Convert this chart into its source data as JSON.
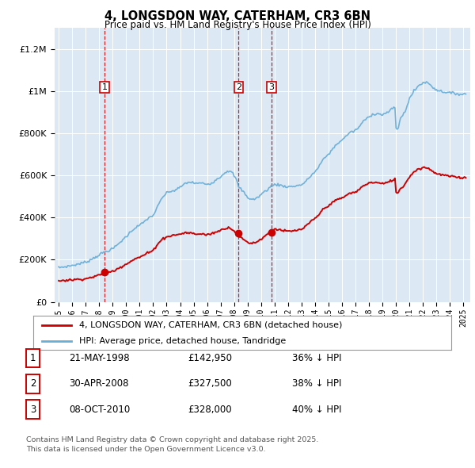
{
  "title": "4, LONGSDON WAY, CATERHAM, CR3 6BN",
  "subtitle": "Price paid vs. HM Land Registry's House Price Index (HPI)",
  "bg_color": "#dce9f5",
  "hpi_color": "#6baed6",
  "price_color": "#cc0000",
  "vline_color": "#cc0000",
  "transactions": [
    {
      "date_num": 1998.39,
      "price": 142950,
      "label": "1"
    },
    {
      "date_num": 2008.33,
      "price": 327500,
      "label": "2"
    },
    {
      "date_num": 2010.77,
      "price": 328000,
      "label": "3"
    }
  ],
  "legend_label_red": "4, LONGSDON WAY, CATERHAM, CR3 6BN (detached house)",
  "legend_label_blue": "HPI: Average price, detached house, Tandridge",
  "table_rows": [
    {
      "num": "1",
      "date": "21-MAY-1998",
      "price": "£142,950",
      "hpi": "36% ↓ HPI"
    },
    {
      "num": "2",
      "date": "30-APR-2008",
      "price": "£327,500",
      "hpi": "38% ↓ HPI"
    },
    {
      "num": "3",
      "date": "08-OCT-2010",
      "price": "£328,000",
      "hpi": "40% ↓ HPI"
    }
  ],
  "footnote": "Contains HM Land Registry data © Crown copyright and database right 2025.\nThis data is licensed under the Open Government Licence v3.0.",
  "ylim_max": 1300000,
  "xlim_start": 1994.7,
  "xlim_end": 2025.5,
  "hpi_data_x": [
    1995.0,
    1995.08,
    1995.17,
    1995.25,
    1995.33,
    1995.42,
    1995.5,
    1995.58,
    1995.67,
    1995.75,
    1995.83,
    1995.92,
    1996.0,
    1996.08,
    1996.17,
    1996.25,
    1996.33,
    1996.42,
    1996.5,
    1996.58,
    1996.67,
    1996.75,
    1996.83,
    1996.92,
    1997.0,
    1997.08,
    1997.17,
    1997.25,
    1997.33,
    1997.42,
    1997.5,
    1997.58,
    1997.67,
    1997.75,
    1997.83,
    1997.92,
    1998.0,
    1998.08,
    1998.17,
    1998.25,
    1998.33,
    1998.42,
    1998.5,
    1998.58,
    1998.67,
    1998.75,
    1998.83,
    1998.92,
    1999.0,
    1999.08,
    1999.17,
    1999.25,
    1999.33,
    1999.42,
    1999.5,
    1999.58,
    1999.67,
    1999.75,
    1999.83,
    1999.92,
    2000.0,
    2000.08,
    2000.17,
    2000.25,
    2000.33,
    2000.42,
    2000.5,
    2000.58,
    2000.67,
    2000.75,
    2000.83,
    2000.92,
    2001.0,
    2001.08,
    2001.17,
    2001.25,
    2001.33,
    2001.42,
    2001.5,
    2001.58,
    2001.67,
    2001.75,
    2001.83,
    2001.92,
    2002.0,
    2002.08,
    2002.17,
    2002.25,
    2002.33,
    2002.42,
    2002.5,
    2002.58,
    2002.67,
    2002.75,
    2002.83,
    2002.92,
    2003.0,
    2003.08,
    2003.17,
    2003.25,
    2003.33,
    2003.42,
    2003.5,
    2003.58,
    2003.67,
    2003.75,
    2003.83,
    2003.92,
    2004.0,
    2004.08,
    2004.17,
    2004.25,
    2004.33,
    2004.42,
    2004.5,
    2004.58,
    2004.67,
    2004.75,
    2004.83,
    2004.92,
    2005.0,
    2005.08,
    2005.17,
    2005.25,
    2005.33,
    2005.42,
    2005.5,
    2005.58,
    2005.67,
    2005.75,
    2005.83,
    2005.92,
    2006.0,
    2006.08,
    2006.17,
    2006.25,
    2006.33,
    2006.42,
    2006.5,
    2006.58,
    2006.67,
    2006.75,
    2006.83,
    2006.92,
    2007.0,
    2007.08,
    2007.17,
    2007.25,
    2007.33,
    2007.42,
    2007.5,
    2007.58,
    2007.67,
    2007.75,
    2007.83,
    2007.92,
    2008.0,
    2008.08,
    2008.17,
    2008.25,
    2008.33,
    2008.42,
    2008.5,
    2008.58,
    2008.67,
    2008.75,
    2008.83,
    2008.92,
    2009.0,
    2009.08,
    2009.17,
    2009.25,
    2009.33,
    2009.42,
    2009.5,
    2009.58,
    2009.67,
    2009.75,
    2009.83,
    2009.92,
    2010.0,
    2010.08,
    2010.17,
    2010.25,
    2010.33,
    2010.42,
    2010.5,
    2010.58,
    2010.67,
    2010.75,
    2010.83,
    2010.92,
    2011.0,
    2011.08,
    2011.17,
    2011.25,
    2011.33,
    2011.42,
    2011.5,
    2011.58,
    2011.67,
    2011.75,
    2011.83,
    2011.92,
    2012.0,
    2012.08,
    2012.17,
    2012.25,
    2012.33,
    2012.42,
    2012.5,
    2012.58,
    2012.67,
    2012.75,
    2012.83,
    2012.92,
    2013.0,
    2013.08,
    2013.17,
    2013.25,
    2013.33,
    2013.42,
    2013.5,
    2013.58,
    2013.67,
    2013.75,
    2013.83,
    2013.92,
    2014.0,
    2014.08,
    2014.17,
    2014.25,
    2014.33,
    2014.42,
    2014.5,
    2014.58,
    2014.67,
    2014.75,
    2014.83,
    2014.92,
    2015.0,
    2015.08,
    2015.17,
    2015.25,
    2015.33,
    2015.42,
    2015.5,
    2015.58,
    2015.67,
    2015.75,
    2015.83,
    2015.92,
    2016.0,
    2016.08,
    2016.17,
    2016.25,
    2016.33,
    2016.42,
    2016.5,
    2016.58,
    2016.67,
    2016.75,
    2016.83,
    2016.92,
    2017.0,
    2017.08,
    2017.17,
    2017.25,
    2017.33,
    2017.42,
    2017.5,
    2017.58,
    2017.67,
    2017.75,
    2017.83,
    2017.92,
    2018.0,
    2018.08,
    2018.17,
    2018.25,
    2018.33,
    2018.42,
    2018.5,
    2018.58,
    2018.67,
    2018.75,
    2018.83,
    2018.92,
    2019.0,
    2019.08,
    2019.17,
    2019.25,
    2019.33,
    2019.42,
    2019.5,
    2019.58,
    2019.67,
    2019.75,
    2019.83,
    2019.92,
    2020.0,
    2020.08,
    2020.17,
    2020.25,
    2020.33,
    2020.42,
    2020.5,
    2020.58,
    2020.67,
    2020.75,
    2020.83,
    2020.92,
    2021.0,
    2021.08,
    2021.17,
    2021.25,
    2021.33,
    2021.42,
    2021.5,
    2021.58,
    2021.67,
    2021.75,
    2021.83,
    2021.92,
    2022.0,
    2022.08,
    2022.17,
    2022.25,
    2022.33,
    2022.42,
    2022.5,
    2022.58,
    2022.67,
    2022.75,
    2022.83,
    2022.92,
    2023.0,
    2023.08,
    2023.17,
    2023.25,
    2023.33,
    2023.42,
    2023.5,
    2023.58,
    2023.67,
    2023.75,
    2023.83,
    2023.92,
    2024.0,
    2024.08,
    2024.17,
    2024.25,
    2024.33,
    2024.42,
    2024.5,
    2024.58,
    2024.67,
    2024.75,
    2024.83,
    2024.92,
    2025.0,
    2025.08,
    2025.17
  ],
  "hpi_data_y": [
    162000,
    163000,
    164500,
    165000,
    165500,
    166000,
    167000,
    168000,
    169000,
    170000,
    171000,
    172000,
    173000,
    174000,
    175000,
    176500,
    178000,
    179000,
    180000,
    182000,
    183000,
    185000,
    186000,
    187500,
    189000,
    191000,
    193000,
    196000,
    199000,
    202000,
    205000,
    208000,
    211000,
    214000,
    217000,
    220000,
    223000,
    226000,
    229000,
    232000,
    235000,
    237000,
    239000,
    241000,
    243000,
    245000,
    247000,
    249000,
    252000,
    256000,
    260000,
    265000,
    270000,
    275000,
    280000,
    285000,
    290000,
    295000,
    300000,
    305000,
    310000,
    315000,
    320000,
    327000,
    333000,
    338000,
    343000,
    347000,
    351000,
    355000,
    358000,
    361000,
    364000,
    367000,
    371000,
    375000,
    380000,
    385000,
    390000,
    395000,
    398000,
    401000,
    404000,
    407000,
    412000,
    420000,
    430000,
    440000,
    452000,
    463000,
    474000,
    484000,
    493000,
    500000,
    506000,
    511000,
    516000,
    520000,
    522000,
    524000,
    525000,
    526000,
    527000,
    529000,
    532000,
    535000,
    538000,
    540000,
    543000,
    548000,
    553000,
    557000,
    560000,
    563000,
    565000,
    567000,
    568000,
    568000,
    567000,
    566000,
    565000,
    564000,
    563000,
    563000,
    563000,
    563000,
    563000,
    563000,
    563000,
    562000,
    561000,
    560000,
    559000,
    560000,
    561000,
    563000,
    565000,
    568000,
    572000,
    576000,
    580000,
    584000,
    587000,
    591000,
    595000,
    600000,
    605000,
    610000,
    614000,
    618000,
    621000,
    622000,
    621000,
    618000,
    613000,
    607000,
    600000,
    590000,
    578000,
    563000,
    548000,
    540000,
    535000,
    530000,
    525000,
    518000,
    510000,
    503000,
    497000,
    493000,
    490000,
    488000,
    487000,
    487000,
    488000,
    490000,
    493000,
    496000,
    500000,
    505000,
    510000,
    515000,
    519000,
    523000,
    527000,
    531000,
    535000,
    540000,
    545000,
    550000,
    553000,
    555000,
    557000,
    558000,
    557000,
    556000,
    555000,
    554000,
    552000,
    551000,
    550000,
    549000,
    548000,
    547000,
    547000,
    547000,
    547000,
    547000,
    548000,
    549000,
    550000,
    551000,
    552000,
    553000,
    554000,
    555000,
    557000,
    560000,
    563000,
    568000,
    573000,
    579000,
    585000,
    591000,
    597000,
    603000,
    608000,
    613000,
    618000,
    624000,
    631000,
    639000,
    648000,
    657000,
    665000,
    673000,
    680000,
    686000,
    692000,
    697000,
    702000,
    708000,
    714000,
    721000,
    728000,
    735000,
    741000,
    747000,
    752000,
    757000,
    761000,
    765000,
    769000,
    773000,
    778000,
    784000,
    790000,
    796000,
    800000,
    803000,
    806000,
    808000,
    810000,
    812000,
    815000,
    819000,
    824000,
    830000,
    837000,
    844000,
    851000,
    857000,
    862000,
    867000,
    871000,
    875000,
    879000,
    883000,
    887000,
    890000,
    892000,
    893000,
    894000,
    894000,
    893000,
    892000,
    891000,
    890000,
    890000,
    891000,
    893000,
    895000,
    898000,
    902000,
    906000,
    910000,
    914000,
    917000,
    920000,
    923000,
    825000,
    820000,
    830000,
    850000,
    870000,
    880000,
    885000,
    895000,
    905000,
    920000,
    935000,
    950000,
    965000,
    975000,
    985000,
    993000,
    1000000,
    1007000,
    1014000,
    1020000,
    1025000,
    1030000,
    1034000,
    1037000,
    1040000,
    1042000,
    1043000,
    1042000,
    1040000,
    1037000,
    1033000,
    1028000,
    1023000,
    1018000,
    1014000,
    1010000,
    1007000,
    1005000,
    1003000,
    1001000,
    1000000,
    999000,
    998000,
    997000,
    996000,
    995000,
    994000,
    993000,
    992000,
    991000,
    990000,
    990000,
    990000,
    990000,
    989000,
    988000,
    987000,
    986000,
    986000,
    986000,
    986000,
    987000,
    988000
  ],
  "price_data_x": [
    1995.0,
    1995.08,
    1995.17,
    1995.25,
    1995.33,
    1995.42,
    1995.5,
    1995.58,
    1995.67,
    1995.75,
    1995.83,
    1995.92,
    1996.0,
    1996.08,
    1996.17,
    1996.25,
    1996.33,
    1996.42,
    1996.5,
    1996.58,
    1996.67,
    1996.75,
    1996.83,
    1996.92,
    1997.0,
    1997.08,
    1997.17,
    1997.25,
    1997.33,
    1997.42,
    1997.5,
    1997.58,
    1997.67,
    1997.75,
    1997.83,
    1997.92,
    1998.0,
    1998.08,
    1998.17,
    1998.25,
    1998.33,
    1998.42,
    1998.5,
    1998.58,
    1998.67,
    1998.75,
    1998.83,
    1998.92,
    1999.0,
    1999.08,
    1999.17,
    1999.25,
    1999.33,
    1999.42,
    1999.5,
    1999.58,
    1999.67,
    1999.75,
    1999.83,
    1999.92,
    2000.0,
    2000.08,
    2000.17,
    2000.25,
    2000.33,
    2000.42,
    2000.5,
    2000.58,
    2000.67,
    2000.75,
    2000.83,
    2000.92,
    2001.0,
    2001.08,
    2001.17,
    2001.25,
    2001.33,
    2001.42,
    2001.5,
    2001.58,
    2001.67,
    2001.75,
    2001.83,
    2001.92,
    2002.0,
    2002.08,
    2002.17,
    2002.25,
    2002.33,
    2002.42,
    2002.5,
    2002.58,
    2002.67,
    2002.75,
    2002.83,
    2002.92,
    2003.0,
    2003.08,
    2003.17,
    2003.25,
    2003.33,
    2003.42,
    2003.5,
    2003.58,
    2003.67,
    2003.75,
    2003.83,
    2003.92,
    2004.0,
    2004.08,
    2004.17,
    2004.25,
    2004.33,
    2004.42,
    2004.5,
    2004.58,
    2004.67,
    2004.75,
    2004.83,
    2004.92,
    2005.0,
    2005.08,
    2005.17,
    2005.25,
    2005.33,
    2005.42,
    2005.5,
    2005.58,
    2005.67,
    2005.75,
    2005.83,
    2005.92,
    2006.0,
    2006.08,
    2006.17,
    2006.25,
    2006.33,
    2006.42,
    2006.5,
    2006.58,
    2006.67,
    2006.75,
    2006.83,
    2006.92,
    2007.0,
    2007.08,
    2007.17,
    2007.25,
    2007.33,
    2007.42,
    2007.5,
    2007.58,
    2007.67,
    2007.75,
    2007.83,
    2007.92,
    2008.0,
    2008.08,
    2008.17,
    2008.25,
    2008.33,
    2008.42,
    2008.5,
    2008.58,
    2008.67,
    2008.75,
    2008.83,
    2008.92,
    2009.0,
    2009.08,
    2009.17,
    2009.25,
    2009.33,
    2009.42,
    2009.5,
    2009.58,
    2009.67,
    2009.75,
    2009.83,
    2009.92,
    2010.0,
    2010.08,
    2010.17,
    2010.25,
    2010.33,
    2010.42,
    2010.5,
    2010.58,
    2010.67,
    2010.75,
    2010.83,
    2010.92,
    2011.0,
    2011.08,
    2011.17,
    2011.25,
    2011.33,
    2011.42,
    2011.5,
    2011.58,
    2011.67,
    2011.75,
    2011.83,
    2011.92,
    2012.0,
    2012.08,
    2012.17,
    2012.25,
    2012.33,
    2012.42,
    2012.5,
    2012.58,
    2012.67,
    2012.75,
    2012.83,
    2012.92,
    2013.0,
    2013.08,
    2013.17,
    2013.25,
    2013.33,
    2013.42,
    2013.5,
    2013.58,
    2013.67,
    2013.75,
    2013.83,
    2013.92,
    2014.0,
    2014.08,
    2014.17,
    2014.25,
    2014.33,
    2014.42,
    2014.5,
    2014.58,
    2014.67,
    2014.75,
    2014.83,
    2014.92,
    2015.0,
    2015.08,
    2015.17,
    2015.25,
    2015.33,
    2015.42,
    2015.5,
    2015.58,
    2015.67,
    2015.75,
    2015.83,
    2015.92,
    2016.0,
    2016.08,
    2016.17,
    2016.25,
    2016.33,
    2016.42,
    2016.5,
    2016.58,
    2016.67,
    2016.75,
    2016.83,
    2016.92,
    2017.0,
    2017.08,
    2017.17,
    2017.25,
    2017.33,
    2017.42,
    2017.5,
    2017.58,
    2017.67,
    2017.75,
    2017.83,
    2017.92,
    2018.0,
    2018.08,
    2018.17,
    2018.25,
    2018.33,
    2018.42,
    2018.5,
    2018.58,
    2018.67,
    2018.75,
    2018.83,
    2018.92,
    2019.0,
    2019.08,
    2019.17,
    2019.25,
    2019.33,
    2019.42,
    2019.5,
    2019.58,
    2019.67,
    2019.75,
    2019.83,
    2019.92,
    2020.0,
    2020.08,
    2020.17,
    2020.25,
    2020.33,
    2020.42,
    2020.5,
    2020.58,
    2020.67,
    2020.75,
    2020.83,
    2020.92,
    2021.0,
    2021.08,
    2021.17,
    2021.25,
    2021.33,
    2021.42,
    2021.5,
    2021.58,
    2021.67,
    2021.75,
    2021.83,
    2021.92,
    2022.0,
    2022.08,
    2022.17,
    2022.25,
    2022.33,
    2022.42,
    2022.5,
    2022.58,
    2022.67,
    2022.75,
    2022.83,
    2022.92,
    2023.0,
    2023.08,
    2023.17,
    2023.25,
    2023.33,
    2023.42,
    2023.5,
    2023.58,
    2023.67,
    2023.75,
    2023.83,
    2023.92,
    2024.0,
    2024.08,
    2024.17,
    2024.25,
    2024.33,
    2024.42,
    2024.5,
    2024.58,
    2024.67,
    2024.75,
    2024.83,
    2024.92,
    2025.0,
    2025.08,
    2025.17
  ],
  "price_data_y": [
    100000,
    100500,
    101000,
    101500,
    102000,
    102000,
    102500,
    103000,
    103500,
    103500,
    104000,
    104000,
    104500,
    105000,
    105500,
    106000,
    106500,
    107000,
    107000,
    107500,
    108000,
    108500,
    109000,
    109500,
    110000,
    111000,
    112000,
    113500,
    115000,
    116500,
    118000,
    119500,
    121000,
    122500,
    124000,
    125000,
    126500,
    128000,
    130000,
    132000,
    134000,
    136000,
    137500,
    139000,
    140000,
    141000,
    142000,
    143000,
    145000,
    147000,
    150000,
    153000,
    156000,
    159000,
    162000,
    165000,
    168000,
    171000,
    174000,
    177000,
    180000,
    183000,
    186000,
    190000,
    193000,
    196000,
    199000,
    201500,
    204000,
    206000,
    208000,
    210000,
    212000,
    214000,
    217000,
    220000,
    223000,
    226000,
    229000,
    232000,
    234000,
    236000,
    238000,
    240000,
    245000,
    252000,
    260000,
    267000,
    275000,
    281000,
    287000,
    292000,
    296000,
    300000,
    303000,
    306000,
    308000,
    310000,
    312000,
    313000,
    314000,
    315000,
    316000,
    317000,
    318000,
    319000,
    320000,
    320000,
    321000,
    323000,
    325000,
    326000,
    327000,
    328000,
    328000,
    328000,
    327000,
    327000,
    326000,
    325000,
    324000,
    323000,
    322000,
    322000,
    322000,
    322000,
    322000,
    322000,
    322000,
    321000,
    320000,
    319000,
    319000,
    320000,
    321000,
    322000,
    324000,
    326000,
    328000,
    330000,
    332000,
    334000,
    336000,
    338000,
    340000,
    342000,
    345000,
    347000,
    349000,
    351000,
    352000,
    352000,
    351000,
    349000,
    346000,
    342000,
    338000,
    332000,
    325000,
    318000,
    311000,
    307000,
    304000,
    301000,
    298000,
    294000,
    290000,
    286000,
    283000,
    281000,
    280000,
    279000,
    279000,
    280000,
    281000,
    283000,
    285000,
    288000,
    291000,
    295000,
    299000,
    303000,
    307000,
    311000,
    315000,
    319000,
    323000,
    328000,
    333000,
    338000,
    341000,
    343000,
    345000,
    346000,
    345000,
    344000,
    343000,
    342000,
    340000,
    339000,
    338000,
    337000,
    336000,
    335000,
    335000,
    335000,
    335000,
    335000,
    336000,
    337000,
    338000,
    339000,
    340000,
    341000,
    342000,
    343000,
    345000,
    348000,
    351000,
    355000,
    360000,
    365000,
    370000,
    375000,
    380000,
    384000,
    388000,
    392000,
    396000,
    401000,
    406000,
    412000,
    419000,
    426000,
    432000,
    438000,
    443000,
    447000,
    451000,
    455000,
    458000,
    462000,
    465000,
    469000,
    473000,
    477000,
    480000,
    483000,
    486000,
    488000,
    490000,
    492000,
    494000,
    496000,
    499000,
    502000,
    506000,
    510000,
    513000,
    515000,
    517000,
    518000,
    519000,
    520000,
    522000,
    525000,
    528000,
    532000,
    537000,
    542000,
    547000,
    551000,
    555000,
    558000,
    560000,
    562000,
    564000,
    565000,
    566000,
    567000,
    567000,
    567000,
    567000,
    566000,
    565000,
    564000,
    563000,
    562000,
    562000,
    562000,
    563000,
    564000,
    566000,
    568000,
    571000,
    574000,
    577000,
    579000,
    581000,
    583000,
    520000,
    517000,
    522000,
    530000,
    538000,
    543000,
    547000,
    553000,
    560000,
    568000,
    577000,
    586000,
    595000,
    601000,
    607000,
    612000,
    617000,
    621000,
    625000,
    628000,
    631000,
    633000,
    635000,
    636000,
    637000,
    638000,
    638000,
    637000,
    635000,
    633000,
    630000,
    627000,
    623000,
    619000,
    616000,
    612000,
    609000,
    607000,
    606000,
    605000,
    604000,
    603000,
    602000,
    601000,
    600000,
    599000,
    598000,
    597000,
    596000,
    595000,
    594000,
    594000,
    594000,
    594000,
    593000,
    592000,
    591000,
    590000,
    590000,
    590000,
    590000,
    591000,
    592000
  ]
}
